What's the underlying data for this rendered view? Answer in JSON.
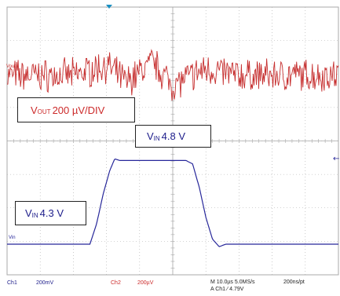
{
  "annotations": {
    "vout_box": {
      "main": "V",
      "sub": "OUT",
      "rest": " 200 µV/DIV"
    },
    "vin_high_box": {
      "main": "V",
      "sub": "IN",
      "rest": " 4.8 V"
    },
    "vin_low_box": {
      "main": "V",
      "sub": "IN",
      "rest": " 4.3 V"
    }
  },
  "markers": {
    "vout": "Vout",
    "vin": "Vin"
  },
  "status_bar": {
    "ch1": "Ch1",
    "ch1_scale": "200mV",
    "ch2": "Ch2",
    "ch2_scale": "200µV",
    "timebase": "M 10.0µs 5.0MS/s",
    "sample": "200ns/pt",
    "trigger": "A  Ch1  ⁄  4.79V"
  },
  "colors": {
    "grid": "#a9a9a9",
    "vout_trace": "#c62f2f",
    "vin_trace": "#27279a",
    "trigger_marker": "#1a8fc1"
  },
  "chart_data": {
    "type": "line",
    "title": "",
    "xlabel": "",
    "ylabel": "",
    "grid": true,
    "x_unit": "µs",
    "x_per_div": 10,
    "xlim": [
      0,
      100
    ],
    "series": [
      {
        "name": "Vout",
        "unit": "µV",
        "volts_per_div": 200,
        "ylim": [
          -500,
          500
        ],
        "x": [
          0,
          20,
          30,
          36,
          44,
          50,
          60,
          70,
          80,
          100
        ],
        "y": [
          0,
          0,
          60,
          -40,
          80,
          -60,
          40,
          0,
          0,
          0
        ],
        "noise_pp": 160
      },
      {
        "name": "Vin",
        "unit": "V",
        "volts_per_div": 0.2,
        "ylim": [
          4.0,
          5.0
        ],
        "x": [
          0,
          25,
          27,
          29,
          31,
          32.5,
          34,
          54,
          56,
          58,
          60,
          62,
          64,
          66,
          70,
          100
        ],
        "y": [
          4.3,
          4.3,
          4.42,
          4.6,
          4.74,
          4.81,
          4.8,
          4.8,
          4.78,
          4.64,
          4.46,
          4.33,
          4.285,
          4.3,
          4.3,
          4.3
        ]
      }
    ]
  }
}
